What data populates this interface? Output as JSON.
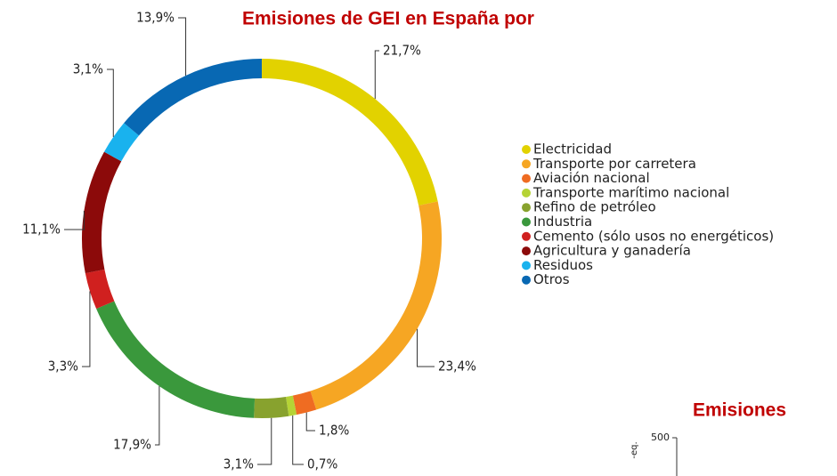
{
  "chart_data": [
    {
      "type": "donut",
      "title": "Emisiones de GEI en España por",
      "categories": [
        "Electricidad",
        "Transporte por carretera",
        "Aviación nacional",
        "Transporte marítimo nacional",
        "Refino de petróleo",
        "Industria",
        "Cemento (sólo usos no energéticos)",
        "Agricultura y ganadería",
        "Residuos",
        "Otros"
      ],
      "values": [
        21.7,
        23.4,
        1.8,
        0.7,
        3.1,
        17.9,
        3.3,
        11.1,
        3.1,
        13.9
      ],
      "value_labels": [
        "21,7%",
        "23,4%",
        "1,8%",
        "0,7%",
        "3,1%",
        "17,9%",
        "3,3%",
        "11,1%",
        "3,1%",
        "13,9%"
      ],
      "colors": [
        "#e2d200",
        "#f6a623",
        "#ef6c22",
        "#b5d335",
        "#88a22e",
        "#3a983c",
        "#d0201f",
        "#8c0a0a",
        "#19b2ee",
        "#0868b3"
      ],
      "legend": "right"
    },
    {
      "type": "bar",
      "title": "Emisiones",
      "y_label": "-eq.",
      "yticks": [
        500
      ]
    }
  ]
}
